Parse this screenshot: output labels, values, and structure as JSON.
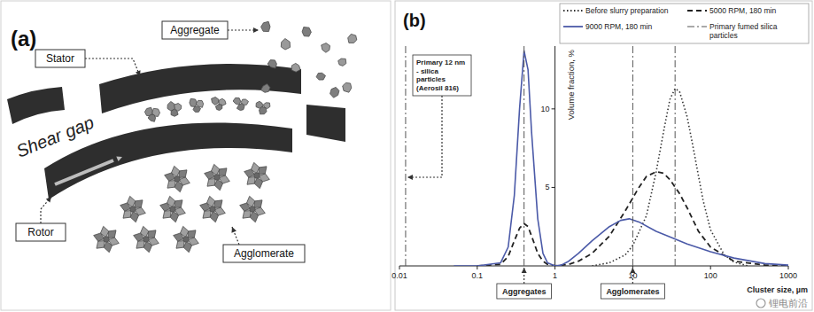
{
  "panel_a": {
    "label": "(a)",
    "stator": "Stator",
    "aggregate": "Aggregate",
    "shear_gap": "Shear gap",
    "rotor": "Rotor",
    "agglomerate": "Agglomerate"
  },
  "chart_data": {
    "type": "line",
    "title": "(b)",
    "x_label": "Cluster size, µm",
    "y_label": "Volume fraction, %",
    "log": "x",
    "xlim": [
      0.01,
      1000
    ],
    "ylim": [
      0,
      14
    ],
    "xticks": [
      0.01,
      0.1,
      1,
      10,
      100,
      1000
    ],
    "yticks": [
      5,
      10
    ],
    "grid": false,
    "legend": "top-right",
    "series": [
      {
        "name": "Before slurry preparation",
        "color": "#333333",
        "line_style": "dotted",
        "x": [
          3,
          5,
          8,
          10,
          15,
          20,
          25,
          30,
          35,
          40,
          50,
          60,
          80,
          100,
          150,
          200,
          300
        ],
        "values": [
          0,
          0.2,
          0.7,
          1.3,
          3.2,
          6,
          8.6,
          10.6,
          11.3,
          11.1,
          9.5,
          7.5,
          4.2,
          2.3,
          0.7,
          0.25,
          0
        ]
      },
      {
        "name": "5000 RPM, 180 min",
        "color": "#222222",
        "line_style": "dashed",
        "x": [
          0.1,
          0.2,
          0.25,
          0.3,
          0.35,
          0.4,
          0.45,
          0.5,
          0.6,
          0.7,
          0.8,
          1,
          1.5,
          2,
          3,
          5,
          8,
          12,
          15,
          20,
          25,
          30,
          40,
          50,
          70,
          100,
          200,
          500,
          1000
        ],
        "values": [
          0,
          0.1,
          0.6,
          1.6,
          2.4,
          2.7,
          2.5,
          1.9,
          0.8,
          0.3,
          0.1,
          0,
          0.1,
          0.3,
          0.8,
          1.9,
          3.5,
          5.0,
          5.7,
          6.0,
          5.9,
          5.5,
          4.6,
          3.7,
          2.2,
          1.2,
          0.3,
          0.05,
          0
        ]
      },
      {
        "name": "9000 RPM, 180 min",
        "color": "#4b5aa8",
        "line_style": "solid",
        "x": [
          0.05,
          0.1,
          0.2,
          0.25,
          0.3,
          0.35,
          0.4,
          0.45,
          0.5,
          0.6,
          0.7,
          0.8,
          1,
          1.2,
          1.5,
          2,
          3,
          5,
          7,
          9,
          12,
          20,
          50,
          100,
          200,
          500,
          1000
        ],
        "values": [
          0,
          0,
          0.2,
          1.2,
          4.5,
          10,
          13.7,
          12.5,
          8.5,
          3,
          0.8,
          0.2,
          0,
          0.05,
          0.3,
          0.8,
          1.6,
          2.5,
          2.9,
          3.0,
          2.8,
          2.2,
          1.4,
          0.9,
          0.5,
          0.15,
          0.05
        ]
      },
      {
        "name": "Primary fumed silica particles",
        "type": "vline",
        "color": "#555555",
        "line_style": "dashdot",
        "x": [
          0.012,
          0.4,
          10,
          35
        ]
      }
    ],
    "annotations": [
      {
        "text": "Primary 12 nm - silica particles (Aerosil 816)",
        "x": 0.012
      },
      {
        "text": "Aggregates",
        "x": 0.4
      },
      {
        "text": "Agglomerates",
        "x": 10
      }
    ]
  },
  "watermark": "锂电前沿"
}
